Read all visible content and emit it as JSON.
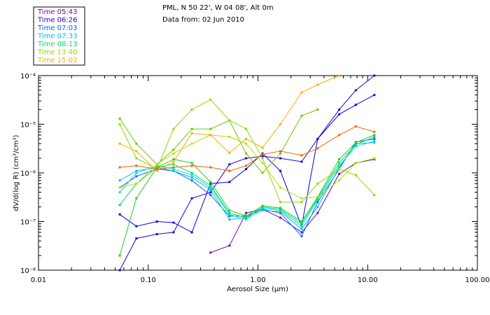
{
  "header": {
    "line1": "PML, N 50 22', W 04 08', Alt 0m",
    "line2": "Data from: 02 Jun 2010"
  },
  "chart_data": {
    "type": "line",
    "xlabel": "Aerosol Size (μm)",
    "ylabel": "dV/d(log R) (cm³/cm³)",
    "xscale": "log",
    "yscale": "log",
    "xlim": [
      0.01,
      100
    ],
    "ylim": [
      1e-08,
      0.0001
    ],
    "grid": false,
    "legend_position": "top-left",
    "x_ticks": [
      {
        "value": 0.01,
        "label": "0.01"
      },
      {
        "value": 0.1,
        "label": "0.10"
      },
      {
        "value": 1,
        "label": "1.00"
      },
      {
        "value": 10,
        "label": "10.00"
      },
      {
        "value": 100,
        "label": "100.00"
      }
    ],
    "y_ticks": [
      {
        "value": 1e-08,
        "label": "10⁻⁸"
      },
      {
        "value": 1e-07,
        "label": "10⁻⁷"
      },
      {
        "value": 1e-06,
        "label": "10⁻⁶"
      },
      {
        "value": 1e-05,
        "label": "10⁻⁵"
      },
      {
        "value": 0.0001,
        "label": "10⁻⁴"
      }
    ],
    "x": [
      0.055,
      0.078,
      0.12,
      0.17,
      0.25,
      0.37,
      0.55,
      0.78,
      1.1,
      1.6,
      2.5,
      3.5,
      5.5,
      7.8,
      11.5
    ],
    "series": [
      {
        "name": "Time 05:43",
        "color": "#6a0dad",
        "values": [
          null,
          null,
          null,
          null,
          null,
          2.3e-08,
          3.2e-08,
          1.5e-07,
          1.8e-07,
          1.2e-07,
          6e-08,
          1.5e-07,
          9.5e-07,
          1.6e-06,
          1.9e-06
        ]
      },
      {
        "name": "Time 06:26",
        "color": "#2200cc",
        "values": [
          1e-08,
          4.5e-08,
          5.5e-08,
          6e-08,
          3e-07,
          4e-07,
          1.5e-06,
          2e-06,
          2.2e-06,
          2e-06,
          1.7e-06,
          5e-06,
          2e-05,
          5e-05,
          0.0001
        ]
      },
      {
        "name": "Time 06:26",
        "color": "#0000ee",
        "values": [
          1.4e-07,
          8e-08,
          1e-07,
          9.5e-08,
          6e-08,
          6e-07,
          6.5e-07,
          1.2e-06,
          2.5e-06,
          1.1e-06,
          8e-08,
          5e-06,
          1.6e-05,
          2.5e-05,
          4e-05
        ]
      },
      {
        "name": "Time 07:03",
        "color": "#0066ff",
        "values": [
          5e-07,
          8.5e-07,
          1.2e-06,
          1.1e-06,
          7e-07,
          3.5e-07,
          1.3e-07,
          1.3e-07,
          1.8e-07,
          1.5e-07,
          5e-08,
          2.5e-07,
          1.2e-06,
          4.3e-06,
          5e-06
        ]
      },
      {
        "name": "Time 07:33",
        "color": "#00bbee",
        "values": [
          7e-07,
          1.1e-06,
          1.3e-06,
          1.1e-06,
          8e-07,
          4.5e-07,
          1.1e-07,
          1.2e-07,
          1.7e-07,
          1.6e-07,
          7e-08,
          2e-07,
          1.3e-06,
          4e-06,
          4.2e-06
        ]
      },
      {
        "name": "Time 07:33",
        "color": "#00e0d0",
        "values": [
          4e-07,
          1e-06,
          1.4e-06,
          1.2e-06,
          9e-07,
          5e-07,
          1.4e-07,
          1.1e-07,
          1.9e-07,
          1.7e-07,
          8e-08,
          2.8e-07,
          1.4e-06,
          3.5e-06,
          4.5e-06
        ]
      },
      {
        "name": "Time 08:13",
        "color": "#00dd66",
        "values": [
          2.2e-07,
          6e-07,
          1.3e-06,
          1.5e-06,
          1e-06,
          5.5e-07,
          1.5e-07,
          1.2e-07,
          2e-07,
          1.8e-07,
          9e-08,
          3e-07,
          1.6e-06,
          3.8e-06,
          5.5e-06
        ]
      },
      {
        "name": "Time 08:13",
        "color": "#22cc22",
        "values": [
          2e-08,
          3e-07,
          1.3e-06,
          1.9e-06,
          1.6e-06,
          6.5e-07,
          1.7e-07,
          1.3e-07,
          2.1e-07,
          1.9e-07,
          1e-07,
          3.2e-07,
          1.9e-06,
          4.2e-06,
          6e-06
        ]
      },
      {
        "name": "Time 13:40",
        "color": "#66cc00",
        "values": [
          1.3e-05,
          4e-06,
          1.5e-06,
          3e-06,
          8e-06,
          8e-06,
          1.2e-05,
          2.5e-06,
          1e-06,
          2.5e-06,
          1.5e-05,
          2e-05,
          null,
          null,
          null
        ]
      },
      {
        "name": "Time 13:40",
        "color": "#88dd00",
        "values": [
          1e-05,
          2e-06,
          1.2e-06,
          8e-06,
          2e-05,
          3.2e-05,
          1.2e-05,
          8e-06,
          2e-06,
          2.5e-07,
          2.5e-07,
          6e-07,
          1.2e-06,
          9e-07,
          3.5e-07
        ]
      },
      {
        "name": "Time 13:40",
        "color": "#bbdd00",
        "values": [
          5e-07,
          6e-07,
          1.5e-06,
          2.5e-06,
          4e-06,
          6e-06,
          5.5e-06,
          4e-06,
          1.6e-06,
          5e-07,
          3e-07,
          3.2e-07,
          7e-07,
          1.6e-06,
          2e-06
        ]
      },
      {
        "name": "Time 15:02",
        "color": "#ffaa00",
        "values": [
          4e-06,
          2.8e-06,
          1.1e-06,
          1.7e-06,
          6.5e-06,
          6e-06,
          2.6e-06,
          5e-06,
          3.3e-06,
          1e-05,
          4.5e-05,
          6.5e-05,
          0.0001,
          null,
          null
        ]
      },
      {
        "name": "Time 15:02",
        "color": "#ee6600",
        "values": [
          1.3e-06,
          1.4e-06,
          1.2e-06,
          1.3e-06,
          1.4e-06,
          1.3e-06,
          1.1e-06,
          1.4e-06,
          2.4e-06,
          2.8e-06,
          2.3e-06,
          3.2e-06,
          6e-06,
          9e-06,
          7e-06
        ]
      }
    ]
  },
  "legend": {
    "entries": [
      {
        "label": "Time 05:43",
        "color": "#6a0dad"
      },
      {
        "label": "Time 06:26",
        "color": "#2200cc"
      },
      {
        "label": "Time 07:03",
        "color": "#0066ff"
      },
      {
        "label": "Time 07:33",
        "color": "#00bbee"
      },
      {
        "label": "Time 08:13",
        "color": "#00dd66"
      },
      {
        "label": "Time 13:40",
        "color": "#88dd00"
      },
      {
        "label": "Time 15:02",
        "color": "#ffaa00"
      }
    ]
  }
}
